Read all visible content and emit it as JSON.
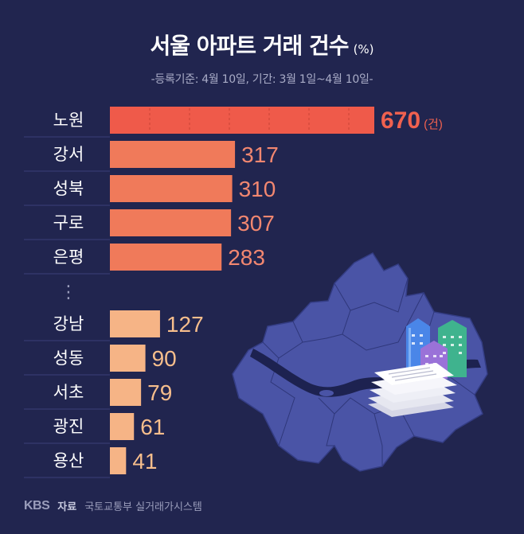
{
  "header": {
    "title": "서울 아파트 거래 건수",
    "unit": "(%)",
    "subtitle": "-등록기준: 4월 10일, 기간: 3월 1일~4월 10일-"
  },
  "footer": {
    "logo": "KBS",
    "source_label": "자료",
    "source_text": "국토교통부 실거래가시스템"
  },
  "chart_data": {
    "type": "bar",
    "orientation": "horizontal",
    "title": "서울 아파트 거래 건수",
    "categories": [
      "노원",
      "강서",
      "성북",
      "구로",
      "은평",
      "강남",
      "성동",
      "서초",
      "광진",
      "용산"
    ],
    "values": [
      670,
      317,
      310,
      307,
      283,
      127,
      90,
      79,
      61,
      41
    ],
    "first_value_unit": "(건)",
    "gap_after_index": 4,
    "gap_marker": "⋮",
    "colors": {
      "top_bar": "#ef5a4a",
      "upper_bars": "#f07a5a",
      "lower_bars": "#f6b486",
      "highlight_value": "#f0614f",
      "upper_value": "#f28770",
      "lower_value": "#f7be8c",
      "label": "#ffffff"
    }
  }
}
